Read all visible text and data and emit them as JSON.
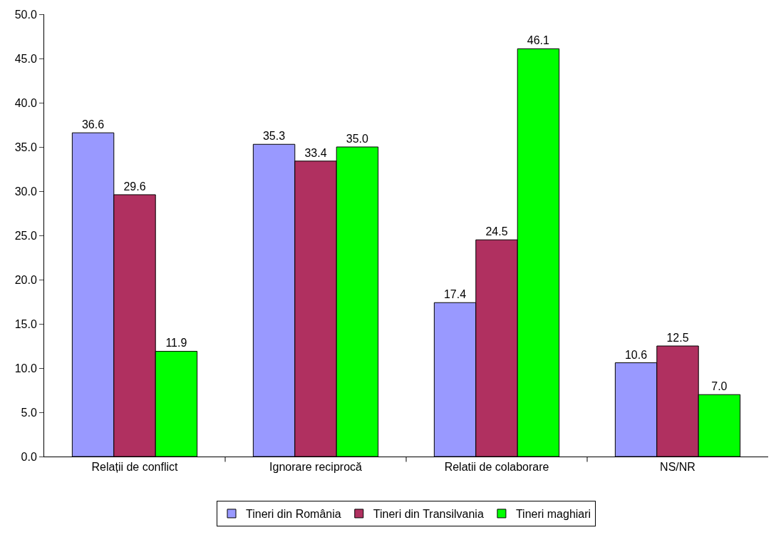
{
  "chart_data": {
    "type": "bar",
    "categories": [
      "Relații de conflict",
      "Ignorare reciprocă",
      "Relatii de colaborare",
      "NS/NR"
    ],
    "series": [
      {
        "name": "Tineri din România",
        "color": "#9999ff",
        "values": [
          36.6,
          35.3,
          17.4,
          10.6
        ],
        "value_labels": [
          "36.6",
          "35.3",
          "17.4",
          "10.6"
        ]
      },
      {
        "name": "Tineri din Transilvania",
        "color": "#b03060",
        "values": [
          29.6,
          33.4,
          24.5,
          12.5
        ],
        "value_labels": [
          "29.6",
          "33.4",
          "24.5",
          "12.5"
        ]
      },
      {
        "name": "Tineri maghiari",
        "color": "#00ff00",
        "values": [
          11.9,
          35.0,
          46.1,
          7.0
        ],
        "value_labels": [
          "11.9",
          "35.0",
          "46.1",
          "7.0"
        ]
      }
    ],
    "ylim": [
      0,
      50
    ],
    "yticks": [
      {
        "value": 0,
        "label": "0.0"
      },
      {
        "value": 5,
        "label": "5.0"
      },
      {
        "value": 10,
        "label": "10.0"
      },
      {
        "value": 15,
        "label": "15.0"
      },
      {
        "value": 20,
        "label": "20.0"
      },
      {
        "value": 25,
        "label": "25.0"
      },
      {
        "value": 30,
        "label": "30.0"
      },
      {
        "value": 35,
        "label": "35.0"
      },
      {
        "value": 40,
        "label": "40.0"
      },
      {
        "value": 45,
        "label": "45.0"
      },
      {
        "value": 50,
        "label": "50.0"
      }
    ],
    "grid": false,
    "legend": "bottom"
  }
}
